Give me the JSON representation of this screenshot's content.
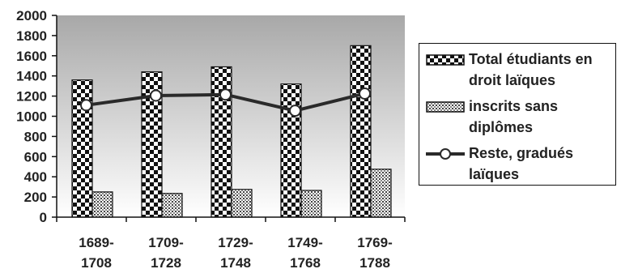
{
  "chart_data": {
    "type": "bar",
    "categories": [
      "1689-\n1708",
      "1709-\n1728",
      "1729-\n1748",
      "1749-\n1768",
      "1769-\n1788"
    ],
    "category_lines": [
      [
        "1689-",
        "1708"
      ],
      [
        "1709-",
        "1728"
      ],
      [
        "1729-",
        "1748"
      ],
      [
        "1749-",
        "1768"
      ],
      [
        "1769-",
        "1788"
      ]
    ],
    "series": [
      {
        "name": "Total étudiants en droit laïques",
        "type": "bar",
        "pattern": "checkerboard",
        "values": [
          1360,
          1440,
          1490,
          1320,
          1700
        ]
      },
      {
        "name": "inscrits sans diplômes",
        "type": "bar",
        "pattern": "crosshatch",
        "values": [
          250,
          235,
          275,
          265,
          475
        ]
      },
      {
        "name": "Reste, gradués laïques",
        "type": "line",
        "marker": "open-circle",
        "values": [
          1110,
          1205,
          1215,
          1055,
          1225
        ]
      }
    ],
    "ylim": [
      0,
      2000
    ],
    "yticks": [
      0,
      200,
      400,
      600,
      800,
      1000,
      1200,
      1400,
      1600,
      1800,
      2000
    ],
    "legend_position": "right",
    "plot_background": "gradient-gray",
    "colors": {
      "bar_dark": "#111111",
      "line": "#2a2a2a",
      "bg_top": "#a9a9a9",
      "bg_bottom": "#ffffff"
    }
  },
  "legend": {
    "items": [
      {
        "label": "Total étudiants en droit laïques",
        "swatch": "checkerboard-icon"
      },
      {
        "label": "inscrits sans diplômes",
        "swatch": "crosshatch-icon"
      },
      {
        "label": "Reste, gradués laïques",
        "swatch": "line-circle-icon"
      }
    ]
  }
}
